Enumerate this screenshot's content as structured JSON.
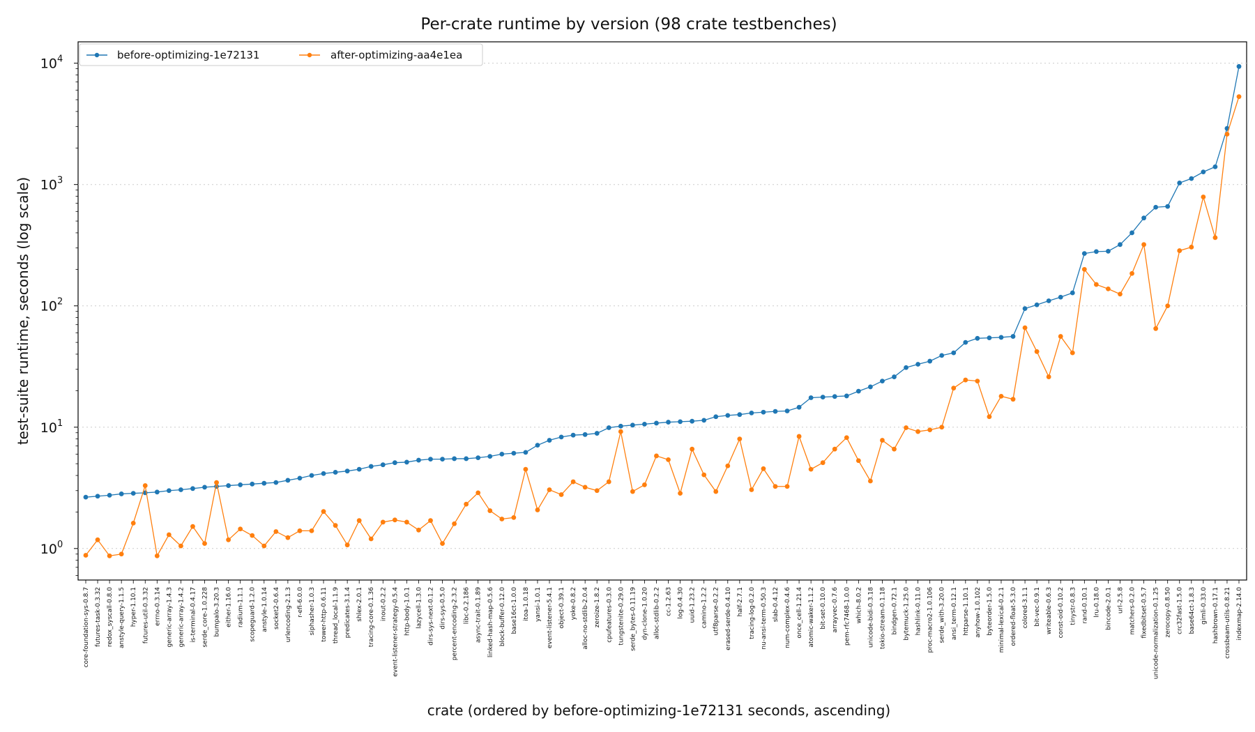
{
  "chart_data": {
    "type": "line",
    "title": "Per-crate runtime by version  (98 crate testbenches)",
    "xlabel": "crate  (ordered by before-optimizing-1e72131 seconds, ascending)",
    "ylabel": "test-suite runtime, seconds  (log scale)",
    "yscale": "log",
    "ylim": [
      0.55,
      15000
    ],
    "yticks": [
      {
        "value": 1,
        "base": "10",
        "exp": "0"
      },
      {
        "value": 10,
        "base": "10",
        "exp": "1"
      },
      {
        "value": 100,
        "base": "10",
        "exp": "2"
      },
      {
        "value": 1000,
        "base": "10",
        "exp": "3"
      },
      {
        "value": 10000,
        "base": "10",
        "exp": "4"
      }
    ],
    "grid": "horizontal dotted",
    "legend_position": "top-left",
    "colors": {
      "before": "#1f77b4",
      "after": "#ff7f0e"
    },
    "categories": [
      "core-foundation-sys-0.8.7",
      "futures-task-0.3.32",
      "redox_syscall-0.8.0",
      "anstyle-query-1.1.5",
      "hyper-1.10.1",
      "futures-util-0.3.32",
      "errno-0.3.14",
      "generic-array-1.4.3",
      "generic-array-1.4.2",
      "is-terminal-0.4.17",
      "serde_core-1.0.228",
      "bumpalo-3.20.3",
      "either-1.16.0",
      "radium-1.1.1",
      "scopeguard-1.2.0",
      "anstyle-1.0.14",
      "socket2-0.6.4",
      "urlencoding-2.1.3",
      "r-efi-6.0.0",
      "siphasher-1.0.3",
      "tower-http-0.6.11",
      "thread_local-1.1.9",
      "predicates-3.1.4",
      "shlex-2.0.1",
      "tracing-core-0.1.36",
      "inout-0.2.2",
      "event-listener-strategy-0.5.4",
      "http-body-1.0.1",
      "lazycell-1.3.0",
      "dirs-sys-next-0.1.2",
      "dirs-sys-0.5.0",
      "percent-encoding-2.3.2",
      "libc-0.2.186",
      "async-trait-0.1.89",
      "linked-hash-map-0.5.6",
      "block-buffer-0.12.0",
      "base16ct-1.0.0",
      "itoa-1.0.18",
      "yansi-1.0.1",
      "event-listener-5.4.1",
      "object-0.39.1",
      "yoke-0.8.2",
      "alloc-no-stdlib-2.0.4",
      "zeroize-1.8.2",
      "cpufeatures-0.3.0",
      "tungstenite-0.29.0",
      "serde_bytes-0.11.19",
      "dyn-clone-1.0.20",
      "alloc-stdlib-0.2.2",
      "cc-1.2.63",
      "log-0.4.30",
      "uuid-1.23.2",
      "camino-1.2.2",
      "utf8parse-0.2.2",
      "erased-serde-0.4.10",
      "half-2.7.1",
      "tracing-log-0.2.0",
      "nu-ansi-term-0.50.3",
      "slab-0.4.12",
      "num-complex-0.4.6",
      "once_cell-1.21.4",
      "atomic-waker-1.1.2",
      "bit-set-0.10.0",
      "arrayvec-0.7.6",
      "pem-rfc7468-1.0.0",
      "which-8.0.2",
      "unicode-bidi-0.3.18",
      "tokio-stream-0.1.18",
      "bindgen-0.72.1",
      "bytemuck-1.25.0",
      "hashlink-0.11.0",
      "proc-macro2-1.0.106",
      "serde_with-3.20.0",
      "ansi_term-0.12.1",
      "httparse-1.10.1",
      "anyhow-1.0.102",
      "byteorder-1.5.0",
      "minimal-lexical-0.2.1",
      "ordered-float-5.3.0",
      "colored-3.1.1",
      "bit-vec-0.9.1",
      "writeable-0.6.3",
      "const-oid-0.10.2",
      "tinystr-0.8.3",
      "rand-0.10.1",
      "lru-0.18.0",
      "bincode-2.0.1",
      "url-2.5.8",
      "matchers-0.2.0",
      "fixedbitset-0.5.7",
      "unicode-normalization-0.1.25",
      "zerocopy-0.8.50",
      "crc32fast-1.5.0",
      "base64ct-1.8.3",
      "gimli-0.33.0",
      "hashbrown-0.17.1",
      "crossbeam-utils-0.8.21",
      "indexmap-2.14.0"
    ],
    "series": [
      {
        "name": "before-optimizing-1e72131",
        "color": "#1f77b4",
        "values": [
          2.65,
          2.7,
          2.75,
          2.82,
          2.85,
          2.88,
          2.92,
          3.0,
          3.05,
          3.12,
          3.2,
          3.25,
          3.3,
          3.35,
          3.4,
          3.45,
          3.5,
          3.65,
          3.8,
          4.0,
          4.15,
          4.25,
          4.35,
          4.5,
          4.75,
          4.9,
          5.1,
          5.15,
          5.35,
          5.45,
          5.45,
          5.5,
          5.5,
          5.6,
          5.75,
          6.0,
          6.1,
          6.2,
          7.1,
          7.8,
          8.3,
          8.6,
          8.7,
          8.9,
          9.9,
          10.2,
          10.4,
          10.6,
          10.8,
          11.0,
          11.1,
          11.2,
          11.4,
          12.2,
          12.5,
          12.7,
          13.1,
          13.3,
          13.5,
          13.6,
          14.6,
          17.5,
          17.7,
          17.9,
          18.1,
          19.8,
          21.5,
          24.0,
          26.0,
          31.0,
          33.0,
          35.0,
          39.0,
          41.0,
          50.0,
          54.0,
          54.5,
          55.0,
          56.0,
          95.0,
          102.0,
          110.0,
          118.0,
          128.0,
          270.0,
          280.0,
          282.0,
          320.0,
          400.0,
          530.0,
          650.0,
          660.0,
          1030.0,
          1120.0,
          1270.0,
          1400.0,
          2900.0,
          9400.0
        ]
      },
      {
        "name": "after-optimizing-aa4e1ea",
        "color": "#ff7f0e",
        "values": [
          0.88,
          1.18,
          0.87,
          0.9,
          1.62,
          3.3,
          0.87,
          1.3,
          1.05,
          1.52,
          1.1,
          3.5,
          1.18,
          1.45,
          1.28,
          1.05,
          1.38,
          1.23,
          1.4,
          1.4,
          2.02,
          1.55,
          1.07,
          1.7,
          1.2,
          1.65,
          1.72,
          1.65,
          1.42,
          1.7,
          1.1,
          1.6,
          2.32,
          2.88,
          2.05,
          1.75,
          1.8,
          4.5,
          2.08,
          3.05,
          2.78,
          3.55,
          3.2,
          3.0,
          3.55,
          9.2,
          2.95,
          3.35,
          5.8,
          5.4,
          2.85,
          6.6,
          4.05,
          2.95,
          4.8,
          8.0,
          3.05,
          4.55,
          3.25,
          3.25,
          8.4,
          4.5,
          5.1,
          6.6,
          8.2,
          5.3,
          3.6,
          7.8,
          6.6,
          9.9,
          9.2,
          9.5,
          10.0,
          21.0,
          24.5,
          24.0,
          12.2,
          18.0,
          17.0,
          66.0,
          42.0,
          26.0,
          56.0,
          41.0,
          200.0,
          150.0,
          138.0,
          125.0,
          185.0,
          320.0,
          65.0,
          100.0,
          285.0,
          305.0,
          790.0,
          365.0,
          2600.0,
          5300.0
        ]
      }
    ]
  }
}
